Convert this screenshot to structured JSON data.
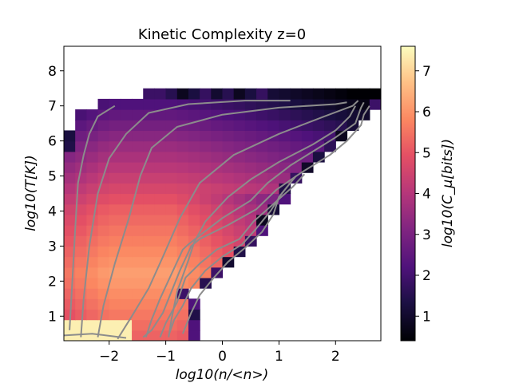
{
  "chart_data": {
    "type": "heatmap",
    "title": "Kinetic Complexity z=0",
    "xlabel": "log10(n/<n>)",
    "ylabel": "log10(T[K])",
    "colorbar_label": "log10(C_μ[bits])",
    "xlim": [
      -2.8,
      2.8
    ],
    "ylim": [
      0.3,
      8.7
    ],
    "xticks": [
      -2,
      -1,
      0,
      1,
      2
    ],
    "yticks": [
      1,
      2,
      3,
      4,
      5,
      6,
      7,
      8
    ],
    "xtick_labels": [
      "−2",
      "−1",
      "0",
      "1",
      "2"
    ],
    "ytick_labels": [
      "1",
      "2",
      "3",
      "4",
      "5",
      "6",
      "7",
      "8"
    ],
    "colorbar_range": [
      0.4,
      7.6
    ],
    "colorbar_ticks": [
      1,
      2,
      3,
      4,
      5,
      6,
      7
    ],
    "colorbar_tick_labels": [
      "1",
      "2",
      "3",
      "4",
      "5",
      "6",
      "7"
    ],
    "colormap": "magma",
    "grid": false,
    "contour_color": "#8c8c8c",
    "region": {
      "y_step": 0.3,
      "rows": [
        [
          0.3,
          -2.8,
          -0.6
        ],
        [
          0.6,
          -2.8,
          -0.6
        ],
        [
          0.9,
          -2.8,
          -0.6
        ],
        [
          1.2,
          -2.8,
          -0.6
        ],
        [
          1.5,
          -2.8,
          -0.8
        ],
        [
          1.8,
          -2.8,
          -0.4
        ],
        [
          2.1,
          -2.8,
          -0.2
        ],
        [
          2.4,
          -2.8,
          0.0
        ],
        [
          2.7,
          -2.8,
          0.2
        ],
        [
          3.0,
          -2.8,
          0.4
        ],
        [
          3.3,
          -2.8,
          0.5
        ],
        [
          3.6,
          -2.8,
          0.6
        ],
        [
          3.9,
          -2.8,
          0.8
        ],
        [
          4.2,
          -2.8,
          0.9
        ],
        [
          4.5,
          -2.8,
          1.0
        ],
        [
          4.8,
          -2.8,
          1.2
        ],
        [
          5.1,
          -2.8,
          1.4
        ],
        [
          5.4,
          -2.8,
          1.6
        ],
        [
          5.7,
          -2.8,
          1.8
        ],
        [
          6.0,
          -2.8,
          2.0
        ],
        [
          6.3,
          -2.6,
          2.2
        ],
        [
          6.6,
          -2.6,
          2.3
        ],
        [
          6.9,
          -2.2,
          2.6
        ],
        [
          7.2,
          -1.4,
          2.8
        ]
      ],
      "dark_cells": [
        [
          0.9,
          -0.6
        ],
        [
          1.5,
          -0.8
        ],
        [
          1.8,
          -0.4
        ],
        [
          2.1,
          -0.2
        ],
        [
          2.4,
          0.0
        ],
        [
          2.7,
          0.2
        ],
        [
          3.0,
          0.4
        ],
        [
          3.3,
          0.5
        ],
        [
          3.6,
          0.6
        ],
        [
          3.9,
          0.8
        ],
        [
          4.2,
          0.9
        ],
        [
          4.5,
          1.0
        ],
        [
          4.8,
          1.2
        ],
        [
          5.1,
          1.4
        ],
        [
          5.4,
          1.6
        ],
        [
          5.7,
          1.8
        ],
        [
          6.0,
          2.0
        ],
        [
          6.3,
          2.2
        ],
        [
          6.6,
          2.3
        ],
        [
          6.9,
          2.6
        ],
        [
          7.2,
          2.8
        ],
        [
          7.2,
          -0.8
        ],
        [
          7.2,
          -0.6
        ],
        [
          7.2,
          -0.4
        ],
        [
          7.2,
          -0.2
        ],
        [
          7.2,
          0.0
        ],
        [
          7.2,
          0.2
        ],
        [
          7.2,
          0.4
        ],
        [
          7.2,
          0.6
        ],
        [
          7.2,
          -1.0
        ],
        [
          5.7,
          -2.8
        ],
        [
          6.0,
          -2.8
        ]
      ]
    },
    "contours": [
      [
        [
          -2.7,
          0.6
        ],
        [
          -2.65,
          2
        ],
        [
          -2.6,
          3.5
        ],
        [
          -2.55,
          4.8
        ],
        [
          -2.45,
          5.6
        ],
        [
          -2.35,
          6.2
        ],
        [
          -2.2,
          6.7
        ],
        [
          -1.9,
          7.0
        ]
      ],
      [
        [
          -2.5,
          0.4
        ],
        [
          -2.45,
          1.5
        ],
        [
          -2.35,
          3
        ],
        [
          -2.2,
          4.5
        ],
        [
          -2.0,
          5.5
        ],
        [
          -1.7,
          6.2
        ],
        [
          -1.3,
          6.8
        ],
        [
          -0.6,
          7.05
        ],
        [
          0.4,
          7.15
        ],
        [
          1.2,
          7.15
        ]
      ],
      [
        [
          -2.2,
          0.4
        ],
        [
          -2.1,
          1.3
        ],
        [
          -1.9,
          2.5
        ],
        [
          -1.65,
          3.8
        ],
        [
          -1.45,
          5.0
        ],
        [
          -1.25,
          5.8
        ],
        [
          -0.8,
          6.4
        ],
        [
          0.0,
          6.75
        ],
        [
          1.0,
          6.95
        ],
        [
          2.0,
          7.05
        ],
        [
          2.2,
          7.1
        ]
      ],
      [
        [
          -1.85,
          0.35
        ],
        [
          -1.6,
          1.0
        ],
        [
          -1.3,
          1.8
        ],
        [
          -1.05,
          2.7
        ],
        [
          -0.75,
          3.8
        ],
        [
          -0.4,
          4.8
        ],
        [
          0.2,
          5.6
        ],
        [
          1.0,
          6.2
        ],
        [
          1.8,
          6.7
        ],
        [
          2.3,
          7.0
        ],
        [
          2.4,
          7.15
        ]
      ],
      [
        [
          -0.95,
          0.4
        ],
        [
          -0.9,
          0.9
        ],
        [
          -0.8,
          1.7
        ],
        [
          -0.6,
          2.6
        ],
        [
          -0.5,
          3.1
        ],
        [
          -0.3,
          3.7
        ],
        [
          0.1,
          4.4
        ],
        [
          0.5,
          4.9
        ],
        [
          1.0,
          5.4
        ],
        [
          1.6,
          5.9
        ],
        [
          2.0,
          6.3
        ],
        [
          2.25,
          6.7
        ],
        [
          2.35,
          7.0
        ]
      ],
      [
        [
          -1.35,
          0.4
        ],
        [
          -1.25,
          0.9
        ],
        [
          -1.1,
          1.5
        ],
        [
          -0.9,
          2.2
        ],
        [
          -0.7,
          2.9
        ],
        [
          -0.6,
          3.05
        ],
        [
          -0.4,
          3.3
        ],
        [
          0.0,
          3.8
        ],
        [
          0.5,
          4.3
        ],
        [
          0.8,
          4.8
        ],
        [
          1.2,
          5.3
        ],
        [
          1.7,
          5.8
        ],
        [
          2.0,
          6.1
        ],
        [
          2.35,
          6.5
        ],
        [
          2.45,
          6.95
        ],
        [
          2.5,
          7.1
        ]
      ],
      [
        [
          -1.4,
          0.4
        ],
        [
          -1.25,
          0.6
        ],
        [
          -1.05,
          1.1
        ],
        [
          -0.9,
          1.7
        ],
        [
          -0.75,
          2.3
        ],
        [
          -0.55,
          3.0
        ],
        [
          -0.4,
          3.2
        ],
        [
          0.1,
          3.6
        ],
        [
          0.6,
          4.05
        ],
        [
          0.95,
          4.6
        ],
        [
          1.4,
          5.1
        ],
        [
          1.9,
          5.6
        ],
        [
          2.2,
          6.0
        ],
        [
          2.45,
          6.45
        ],
        [
          2.5,
          6.75
        ],
        [
          2.6,
          7.0
        ]
      ],
      [
        [
          -1.1,
          0.4
        ],
        [
          -1.0,
          0.8
        ],
        [
          -0.8,
          1.4
        ],
        [
          -0.65,
          2.1
        ],
        [
          -0.4,
          2.5
        ],
        [
          -0.1,
          2.9
        ],
        [
          0.3,
          3.2
        ],
        [
          0.55,
          3.7
        ],
        [
          0.9,
          4.2
        ],
        [
          1.25,
          4.7
        ],
        [
          1.45,
          5.05
        ]
      ],
      [
        [
          -0.95,
          0.45
        ],
        [
          -0.85,
          0.9
        ],
        [
          -0.7,
          1.3
        ],
        [
          -0.55,
          1.8
        ],
        [
          -0.3,
          2.3
        ],
        [
          0.0,
          2.7
        ],
        [
          0.35,
          3.05
        ],
        [
          0.6,
          3.5
        ],
        [
          0.85,
          4.0
        ],
        [
          1.05,
          4.5
        ],
        [
          1.3,
          5.0
        ]
      ],
      [
        [
          -0.7,
          0.5
        ],
        [
          -0.55,
          1.1
        ],
        [
          -0.4,
          1.6
        ],
        [
          -0.15,
          2.1
        ],
        [
          0.1,
          2.55
        ],
        [
          0.4,
          2.95
        ],
        [
          0.7,
          3.4
        ],
        [
          0.9,
          3.9
        ],
        [
          1.0,
          4.4
        ],
        [
          1.2,
          4.8
        ],
        [
          1.3,
          5.0
        ]
      ],
      [
        [
          -2.8,
          0.45
        ],
        [
          -2.3,
          0.5
        ],
        [
          -1.9,
          0.42
        ],
        [
          -1.7,
          0.38
        ]
      ]
    ]
  }
}
